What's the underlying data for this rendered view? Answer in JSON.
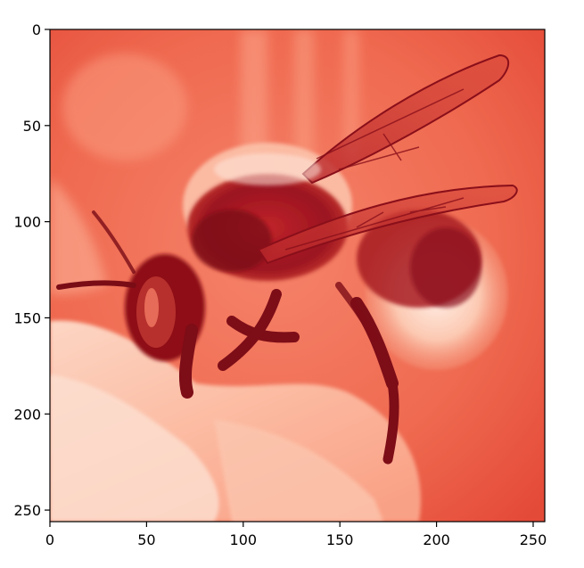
{
  "figure": {
    "image_subject": "bee-on-flower",
    "colormap": "Reds",
    "colors": {
      "background": "#ffffff",
      "axis": "#000000",
      "cmap_low": "#fff5f0",
      "cmap_mid": "#f26b52",
      "cmap_high": "#67000d"
    }
  },
  "axes": {
    "x": {
      "range": [
        0,
        256
      ],
      "ticks": [
        0,
        50,
        100,
        150,
        200,
        250
      ],
      "tick_labels": [
        "0",
        "50",
        "100",
        "150",
        "200",
        "250"
      ]
    },
    "y": {
      "range": [
        0,
        256
      ],
      "inverted": true,
      "ticks": [
        0,
        50,
        100,
        150,
        200,
        250
      ],
      "tick_labels": [
        "0",
        "50",
        "100",
        "150",
        "200",
        "250"
      ]
    },
    "grid": false
  }
}
